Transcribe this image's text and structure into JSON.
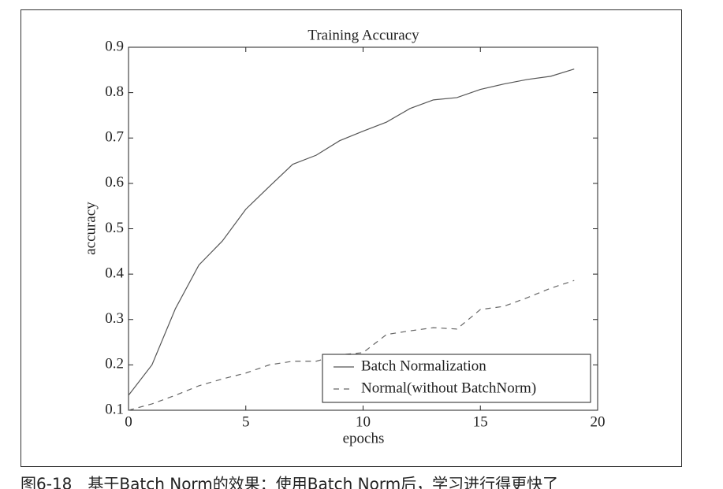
{
  "chart_data": {
    "type": "line",
    "title": "Training Accuracy",
    "xlabel": "epochs",
    "ylabel": "accuracy",
    "x": [
      0,
      1,
      2,
      3,
      4,
      5,
      6,
      7,
      8,
      9,
      10,
      11,
      12,
      13,
      14,
      15,
      16,
      17,
      18,
      19
    ],
    "series": [
      {
        "name": "Batch Normalization",
        "color": "#555555",
        "dash": false,
        "values": [
          0.133,
          0.2,
          0.324,
          0.42,
          0.473,
          0.543,
          0.593,
          0.642,
          0.662,
          0.694,
          0.715,
          0.735,
          0.765,
          0.784,
          0.789,
          0.807,
          0.819,
          0.829,
          0.836,
          0.852
        ]
      },
      {
        "name": "Normal(without BatchNorm)",
        "color": "#666666",
        "dash": true,
        "values": [
          0.1,
          0.114,
          0.133,
          0.154,
          0.169,
          0.182,
          0.2,
          0.208,
          0.208,
          0.222,
          0.227,
          0.267,
          0.275,
          0.282,
          0.279,
          0.322,
          0.329,
          0.348,
          0.369,
          0.386
        ]
      }
    ],
    "xlim": [
      0,
      20
    ],
    "xticks": [
      0,
      5,
      10,
      15,
      20
    ],
    "ylim": [
      0.1,
      0.9
    ],
    "yticks": [
      0.1,
      0.2,
      0.3,
      0.4,
      0.5,
      0.6,
      0.7,
      0.8,
      0.9
    ],
    "legend": "lower right",
    "grid": false
  },
  "caption": "图6-18　基于Batch Norm的效果：使用Batch Norm后，学习进行得更快了"
}
